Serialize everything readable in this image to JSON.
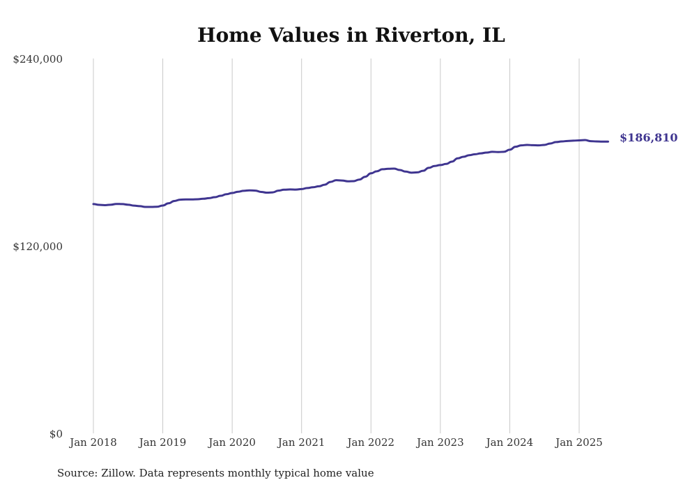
{
  "chart_data": {
    "type": "line",
    "title": "Home Values in Riverton, IL",
    "xlabel": "",
    "ylabel": "",
    "ylim": [
      0,
      240000
    ],
    "y_ticks": [
      {
        "value": 0,
        "label": "$0"
      },
      {
        "value": 120000,
        "label": "$120,000"
      },
      {
        "value": 240000,
        "label": "$240,000"
      }
    ],
    "x_ticks": [
      {
        "value": "2018-01",
        "label": "Jan 2018"
      },
      {
        "value": "2019-01",
        "label": "Jan 2019"
      },
      {
        "value": "2020-01",
        "label": "Jan 2020"
      },
      {
        "value": "2021-01",
        "label": "Jan 2021"
      },
      {
        "value": "2022-01",
        "label": "Jan 2022"
      },
      {
        "value": "2023-01",
        "label": "Jan 2023"
      },
      {
        "value": "2024-01",
        "label": "Jan 2024"
      },
      {
        "value": "2025-01",
        "label": "Jan 2025"
      }
    ],
    "grid": "vertical",
    "color": "#3f3590",
    "end_label": "$186,810",
    "series": [
      {
        "x": [
          "2018-01",
          "2018-02",
          "2018-03",
          "2018-04",
          "2018-05",
          "2018-06",
          "2018-07",
          "2018-08",
          "2018-09",
          "2018-10",
          "2018-11",
          "2018-12",
          "2019-01",
          "2019-02",
          "2019-03",
          "2019-04",
          "2019-05",
          "2019-06",
          "2019-07",
          "2019-08",
          "2019-09",
          "2019-10",
          "2019-11",
          "2019-12",
          "2020-01",
          "2020-02",
          "2020-03",
          "2020-04",
          "2020-05",
          "2020-06",
          "2020-07",
          "2020-08",
          "2020-09",
          "2020-10",
          "2020-11",
          "2020-12",
          "2021-01",
          "2021-02",
          "2021-03",
          "2021-04",
          "2021-05",
          "2021-06",
          "2021-07",
          "2021-08",
          "2021-09",
          "2021-10",
          "2021-11",
          "2021-12",
          "2022-01",
          "2022-02",
          "2022-03",
          "2022-04",
          "2022-05",
          "2022-06",
          "2022-07",
          "2022-08",
          "2022-09",
          "2022-10",
          "2022-11",
          "2022-12",
          "2023-01",
          "2023-02",
          "2023-03",
          "2023-04",
          "2023-05",
          "2023-06",
          "2023-07",
          "2023-08",
          "2023-09",
          "2023-10",
          "2023-11",
          "2023-12",
          "2024-01",
          "2024-02",
          "2024-03",
          "2024-04",
          "2024-05",
          "2024-06",
          "2024-07",
          "2024-08",
          "2024-09",
          "2024-10",
          "2024-11",
          "2024-12",
          "2025-01",
          "2025-02",
          "2025-03",
          "2025-04",
          "2025-05",
          "2025-06"
        ],
        "values": [
          146800,
          146300,
          146100,
          146400,
          146900,
          146800,
          146400,
          145800,
          145500,
          145000,
          145000,
          145100,
          145900,
          147300,
          148800,
          149600,
          149800,
          149800,
          149900,
          150200,
          150600,
          151200,
          152100,
          153100,
          153900,
          154700,
          155300,
          155600,
          155400,
          154600,
          154100,
          154300,
          155400,
          156000,
          156200,
          156100,
          156400,
          157100,
          157600,
          158200,
          159200,
          161000,
          162100,
          161900,
          161400,
          161500,
          162500,
          164300,
          166500,
          167800,
          169100,
          169400,
          169500,
          168600,
          167600,
          166900,
          167100,
          168100,
          170000,
          171200,
          171800,
          172500,
          174000,
          176100,
          177100,
          178100,
          178700,
          179300,
          179800,
          180300,
          180100,
          180300,
          181600,
          183500,
          184400,
          184700,
          184500,
          184400,
          184700,
          185600,
          186500,
          186900,
          187200,
          187400,
          187600,
          187800,
          187100,
          186900,
          186810,
          186810
        ]
      }
    ],
    "source": "Source: Zillow. Data represents monthly typical home value"
  }
}
